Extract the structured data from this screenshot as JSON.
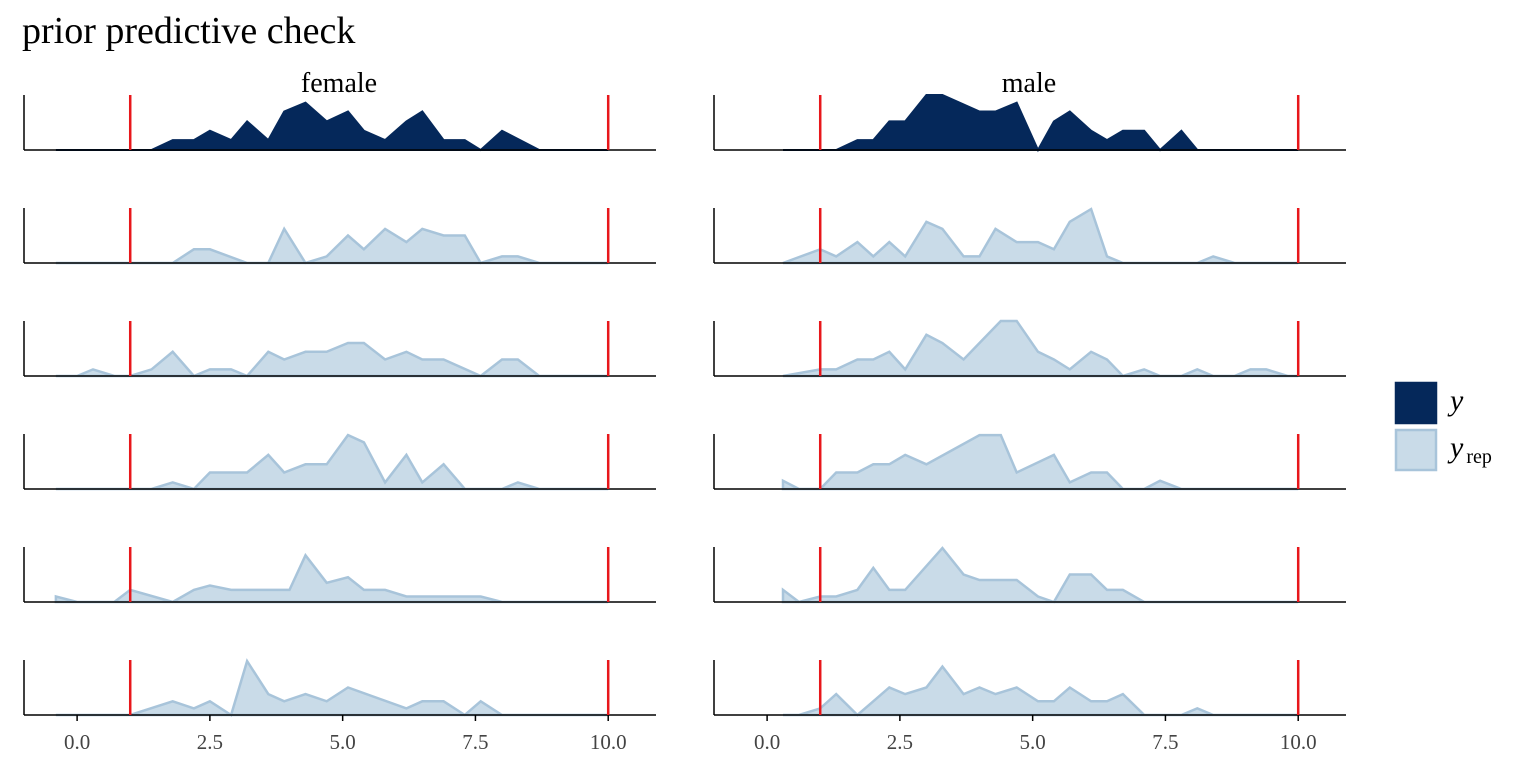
{
  "chart_data": {
    "type": "area",
    "title": "prior predictive check",
    "facets": [
      "female",
      "male"
    ],
    "x_ticks": [
      0.0,
      2.5,
      5.0,
      7.5,
      10.0
    ],
    "x_tick_labels": [
      "0.0",
      "2.5",
      "5.0",
      "7.5",
      "10.0"
    ],
    "xlim": [
      -1.0,
      10.9
    ],
    "vlines": [
      1,
      10
    ],
    "vline_color": "#e8171b",
    "legend": {
      "position": "right",
      "items": [
        {
          "key": "y",
          "label": "y",
          "sub": "",
          "fill": "#05285a",
          "stroke": "#05285a"
        },
        {
          "key": "yrep",
          "label": "y",
          "sub": "rep",
          "fill": "#c9dbe8",
          "stroke": "#a8c4da"
        }
      ]
    },
    "colors": {
      "y_fill": "#05285a",
      "y_stroke": "#05285a",
      "yrep_fill": "#c9dbe8",
      "yrep_stroke": "#a8c4da",
      "axis": "#000000"
    },
    "panels": {
      "female": [
        {
          "series": "y",
          "points": [
            [
              -0.4,
              0
            ],
            [
              1.4,
              0
            ],
            [
              1.8,
              0.18
            ],
            [
              2.2,
              0.18
            ],
            [
              2.5,
              0.35
            ],
            [
              2.9,
              0.18
            ],
            [
              3.2,
              0.52
            ],
            [
              3.6,
              0.18
            ],
            [
              3.9,
              0.7
            ],
            [
              4.3,
              0.86
            ],
            [
              4.7,
              0.52
            ],
            [
              5.1,
              0.7
            ],
            [
              5.4,
              0.35
            ],
            [
              5.8,
              0.18
            ],
            [
              6.2,
              0.52
            ],
            [
              6.5,
              0.7
            ],
            [
              6.9,
              0.18
            ],
            [
              7.3,
              0.18
            ],
            [
              7.6,
              0
            ],
            [
              8.0,
              0.35
            ],
            [
              8.7,
              0
            ],
            [
              10.0,
              0
            ]
          ]
        },
        {
          "series": "yrep",
          "points": [
            [
              -0.4,
              0
            ],
            [
              1.8,
              0
            ],
            [
              2.2,
              0.25
            ],
            [
              2.5,
              0.25
            ],
            [
              3.2,
              0
            ],
            [
              3.6,
              0
            ],
            [
              3.9,
              0.62
            ],
            [
              4.3,
              0
            ],
            [
              4.7,
              0.12
            ],
            [
              5.1,
              0.5
            ],
            [
              5.4,
              0.25
            ],
            [
              5.8,
              0.62
            ],
            [
              6.2,
              0.38
            ],
            [
              6.5,
              0.62
            ],
            [
              6.9,
              0.5
            ],
            [
              7.3,
              0.5
            ],
            [
              7.6,
              0
            ],
            [
              8.0,
              0.12
            ],
            [
              8.3,
              0.12
            ],
            [
              8.7,
              0
            ],
            [
              10.0,
              0
            ]
          ]
        },
        {
          "series": "yrep",
          "points": [
            [
              -0.4,
              0
            ],
            [
              0,
              0
            ],
            [
              0.3,
              0.12
            ],
            [
              0.7,
              0
            ],
            [
              1.0,
              0
            ],
            [
              1.4,
              0.12
            ],
            [
              1.8,
              0.44
            ],
            [
              2.2,
              0
            ],
            [
              2.5,
              0.12
            ],
            [
              2.9,
              0.12
            ],
            [
              3.2,
              0
            ],
            [
              3.6,
              0.44
            ],
            [
              3.9,
              0.3
            ],
            [
              4.3,
              0.44
            ],
            [
              4.7,
              0.44
            ],
            [
              5.1,
              0.6
            ],
            [
              5.4,
              0.6
            ],
            [
              5.8,
              0.3
            ],
            [
              6.2,
              0.44
            ],
            [
              6.5,
              0.3
            ],
            [
              6.9,
              0.3
            ],
            [
              7.6,
              0
            ],
            [
              8.0,
              0.3
            ],
            [
              8.3,
              0.3
            ],
            [
              8.7,
              0
            ],
            [
              10.0,
              0
            ]
          ]
        },
        {
          "series": "yrep",
          "points": [
            [
              -0.4,
              0
            ],
            [
              1.4,
              0
            ],
            [
              1.8,
              0.12
            ],
            [
              2.2,
              0
            ],
            [
              2.5,
              0.3
            ],
            [
              3.2,
              0.3
            ],
            [
              3.6,
              0.62
            ],
            [
              3.9,
              0.3
            ],
            [
              4.3,
              0.45
            ],
            [
              4.7,
              0.45
            ],
            [
              5.1,
              0.98
            ],
            [
              5.4,
              0.85
            ],
            [
              5.8,
              0.12
            ],
            [
              6.2,
              0.62
            ],
            [
              6.5,
              0.12
            ],
            [
              6.9,
              0.45
            ],
            [
              7.3,
              0
            ],
            [
              8.0,
              0
            ],
            [
              8.3,
              0.12
            ],
            [
              8.7,
              0
            ],
            [
              10.0,
              0
            ]
          ]
        },
        {
          "series": "yrep",
          "points": [
            [
              -0.4,
              0.1
            ],
            [
              0,
              0
            ],
            [
              0.7,
              0
            ],
            [
              1.0,
              0.22
            ],
            [
              1.8,
              0
            ],
            [
              2.2,
              0.22
            ],
            [
              2.5,
              0.3
            ],
            [
              2.9,
              0.22
            ],
            [
              3.2,
              0.22
            ],
            [
              3.6,
              0.22
            ],
            [
              4.0,
              0.22
            ],
            [
              4.3,
              0.85
            ],
            [
              4.7,
              0.35
            ],
            [
              5.1,
              0.45
            ],
            [
              5.4,
              0.22
            ],
            [
              5.8,
              0.22
            ],
            [
              6.2,
              0.1
            ],
            [
              7.6,
              0.1
            ],
            [
              8.0,
              0
            ],
            [
              10.0,
              0
            ]
          ]
        },
        {
          "series": "yrep",
          "points": [
            [
              -0.4,
              0
            ],
            [
              1.0,
              0
            ],
            [
              1.8,
              0.25
            ],
            [
              2.2,
              0.12
            ],
            [
              2.5,
              0.25
            ],
            [
              2.9,
              0
            ],
            [
              3.2,
              0.98
            ],
            [
              3.6,
              0.38
            ],
            [
              3.9,
              0.25
            ],
            [
              4.3,
              0.38
            ],
            [
              4.7,
              0.25
            ],
            [
              5.1,
              0.5
            ],
            [
              6.2,
              0.12
            ],
            [
              6.5,
              0.25
            ],
            [
              6.9,
              0.25
            ],
            [
              7.3,
              0
            ],
            [
              7.6,
              0.25
            ],
            [
              8.0,
              0
            ],
            [
              10.0,
              0
            ]
          ]
        }
      ],
      "male": [
        {
          "series": "y",
          "points": [
            [
              0.3,
              0
            ],
            [
              1.3,
              0
            ],
            [
              1.7,
              0.18
            ],
            [
              2.0,
              0.18
            ],
            [
              2.3,
              0.52
            ],
            [
              2.6,
              0.52
            ],
            [
              3.0,
              1.0
            ],
            [
              3.3,
              1.0
            ],
            [
              4.0,
              0.7
            ],
            [
              4.3,
              0.7
            ],
            [
              4.7,
              0.86
            ],
            [
              5.1,
              0
            ],
            [
              5.4,
              0.52
            ],
            [
              5.7,
              0.7
            ],
            [
              6.1,
              0.35
            ],
            [
              6.4,
              0.18
            ],
            [
              6.7,
              0.35
            ],
            [
              7.1,
              0.35
            ],
            [
              7.4,
              0
            ],
            [
              7.8,
              0.35
            ],
            [
              8.1,
              0
            ],
            [
              10.0,
              0
            ]
          ]
        },
        {
          "series": "yrep",
          "points": [
            [
              0.3,
              0
            ],
            [
              1.0,
              0.25
            ],
            [
              1.3,
              0.12
            ],
            [
              1.7,
              0.38
            ],
            [
              2.0,
              0.12
            ],
            [
              2.3,
              0.38
            ],
            [
              2.6,
              0.12
            ],
            [
              3.0,
              0.75
            ],
            [
              3.3,
              0.62
            ],
            [
              3.7,
              0.12
            ],
            [
              4.0,
              0.12
            ],
            [
              4.3,
              0.62
            ],
            [
              4.7,
              0.38
            ],
            [
              5.1,
              0.38
            ],
            [
              5.4,
              0.25
            ],
            [
              5.7,
              0.75
            ],
            [
              6.1,
              0.98
            ],
            [
              6.4,
              0.12
            ],
            [
              6.7,
              0
            ],
            [
              8.1,
              0
            ],
            [
              8.4,
              0.12
            ],
            [
              8.8,
              0
            ],
            [
              10.0,
              0
            ]
          ]
        },
        {
          "series": "yrep",
          "points": [
            [
              0.3,
              0
            ],
            [
              1.0,
              0.12
            ],
            [
              1.3,
              0.12
            ],
            [
              1.7,
              0.3
            ],
            [
              2.0,
              0.3
            ],
            [
              2.3,
              0.44
            ],
            [
              2.6,
              0.12
            ],
            [
              3.0,
              0.75
            ],
            [
              3.3,
              0.6
            ],
            [
              3.7,
              0.3
            ],
            [
              4.0,
              0.6
            ],
            [
              4.4,
              1.0
            ],
            [
              4.7,
              1.0
            ],
            [
              5.1,
              0.44
            ],
            [
              5.4,
              0.3
            ],
            [
              5.7,
              0.12
            ],
            [
              6.1,
              0.44
            ],
            [
              6.4,
              0.3
            ],
            [
              6.7,
              0
            ],
            [
              7.1,
              0.12
            ],
            [
              7.4,
              0
            ],
            [
              7.8,
              0
            ],
            [
              8.1,
              0.12
            ],
            [
              8.4,
              0
            ],
            [
              8.8,
              0
            ],
            [
              9.1,
              0.12
            ],
            [
              9.4,
              0.12
            ],
            [
              9.8,
              0
            ],
            [
              10.0,
              0
            ]
          ]
        },
        {
          "series": "yrep",
          "points": [
            [
              0.3,
              0.15
            ],
            [
              0.6,
              0
            ],
            [
              1.0,
              0
            ],
            [
              1.3,
              0.3
            ],
            [
              1.7,
              0.3
            ],
            [
              2.0,
              0.45
            ],
            [
              2.3,
              0.45
            ],
            [
              2.6,
              0.62
            ],
            [
              3.0,
              0.45
            ],
            [
              4.0,
              0.98
            ],
            [
              4.4,
              0.98
            ],
            [
              4.7,
              0.3
            ],
            [
              5.4,
              0.62
            ],
            [
              5.7,
              0.12
            ],
            [
              6.1,
              0.3
            ],
            [
              6.4,
              0.3
            ],
            [
              6.7,
              0
            ],
            [
              7.1,
              0
            ],
            [
              7.4,
              0.15
            ],
            [
              7.8,
              0
            ],
            [
              10.0,
              0
            ]
          ]
        },
        {
          "series": "yrep",
          "points": [
            [
              0.3,
              0.22
            ],
            [
              0.6,
              0
            ],
            [
              1.0,
              0.1
            ],
            [
              1.3,
              0.1
            ],
            [
              1.7,
              0.22
            ],
            [
              2.0,
              0.62
            ],
            [
              2.3,
              0.22
            ],
            [
              2.6,
              0.22
            ],
            [
              3.3,
              0.98
            ],
            [
              3.7,
              0.5
            ],
            [
              4.0,
              0.4
            ],
            [
              4.7,
              0.4
            ],
            [
              5.1,
              0.1
            ],
            [
              5.4,
              0
            ],
            [
              5.7,
              0.5
            ],
            [
              6.1,
              0.5
            ],
            [
              6.4,
              0.22
            ],
            [
              6.7,
              0.22
            ],
            [
              7.1,
              0
            ],
            [
              10.0,
              0
            ]
          ]
        },
        {
          "series": "yrep",
          "points": [
            [
              0.3,
              0
            ],
            [
              0.6,
              0
            ],
            [
              1.0,
              0.12
            ],
            [
              1.3,
              0.38
            ],
            [
              1.7,
              0
            ],
            [
              2.0,
              0.25
            ],
            [
              2.3,
              0.5
            ],
            [
              2.6,
              0.38
            ],
            [
              3.0,
              0.5
            ],
            [
              3.3,
              0.88
            ],
            [
              3.7,
              0.38
            ],
            [
              4.0,
              0.5
            ],
            [
              4.3,
              0.38
            ],
            [
              4.7,
              0.5
            ],
            [
              5.1,
              0.25
            ],
            [
              5.4,
              0.25
            ],
            [
              5.7,
              0.5
            ],
            [
              6.1,
              0.25
            ],
            [
              6.4,
              0.25
            ],
            [
              6.7,
              0.38
            ],
            [
              7.1,
              0
            ],
            [
              7.8,
              0
            ],
            [
              8.1,
              0.12
            ],
            [
              8.4,
              0
            ],
            [
              10.0,
              0
            ]
          ]
        }
      ]
    }
  }
}
